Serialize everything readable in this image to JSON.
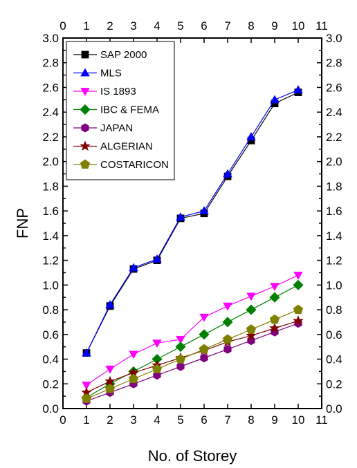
{
  "chart_data": {
    "type": "line",
    "xlabel": "No. of Storey",
    "ylabel": "FNP",
    "xlim": [
      0,
      11
    ],
    "ylim": [
      0,
      3.0
    ],
    "xticks": [
      "0",
      "1",
      "2",
      "3",
      "4",
      "5",
      "6",
      "7",
      "8",
      "9",
      "10",
      "11"
    ],
    "yticks": [
      "0.0",
      "0.2",
      "0.4",
      "0.6",
      "0.8",
      "1.0",
      "1.2",
      "1.4",
      "1.6",
      "1.8",
      "2.0",
      "2.2",
      "2.4",
      "2.6",
      "2.8",
      "3.0"
    ],
    "x": [
      1,
      2,
      3,
      4,
      5,
      6,
      7,
      8,
      9,
      10
    ],
    "legend_position": "top-left",
    "grid": false,
    "series": [
      {
        "name": "SAP 2000",
        "color": "#000000",
        "marker": "square",
        "values": [
          0.45,
          0.83,
          1.13,
          1.2,
          1.54,
          1.58,
          1.88,
          2.17,
          2.47,
          2.56
        ]
      },
      {
        "name": "MLS",
        "color": "#0000ff",
        "marker": "triangle-up",
        "values": [
          0.45,
          0.84,
          1.14,
          1.21,
          1.55,
          1.6,
          1.9,
          2.2,
          2.5,
          2.58
        ]
      },
      {
        "name": "IS 1893",
        "color": "#ff00ff",
        "marker": "triangle-down",
        "values": [
          0.19,
          0.32,
          0.44,
          0.53,
          0.56,
          0.74,
          0.83,
          0.91,
          0.99,
          1.08
        ]
      },
      {
        "name": "IBC & FEMA",
        "color": "#008000",
        "marker": "diamond",
        "values": [
          0.09,
          0.2,
          0.3,
          0.4,
          0.5,
          0.6,
          0.7,
          0.8,
          0.9,
          1.0
        ]
      },
      {
        "name": "JAPAN",
        "color": "#800080",
        "marker": "hexagon",
        "values": [
          0.06,
          0.13,
          0.2,
          0.27,
          0.34,
          0.41,
          0.48,
          0.55,
          0.62,
          0.69
        ]
      },
      {
        "name": "ALGERIAN",
        "color": "#800000",
        "marker": "star",
        "values": [
          0.13,
          0.22,
          0.29,
          0.35,
          0.41,
          0.47,
          0.54,
          0.59,
          0.65,
          0.71
        ]
      },
      {
        "name": "COSTARICON",
        "color": "#808000",
        "marker": "pentagon",
        "values": [
          0.08,
          0.16,
          0.24,
          0.32,
          0.4,
          0.48,
          0.56,
          0.64,
          0.72,
          0.8
        ]
      }
    ]
  }
}
